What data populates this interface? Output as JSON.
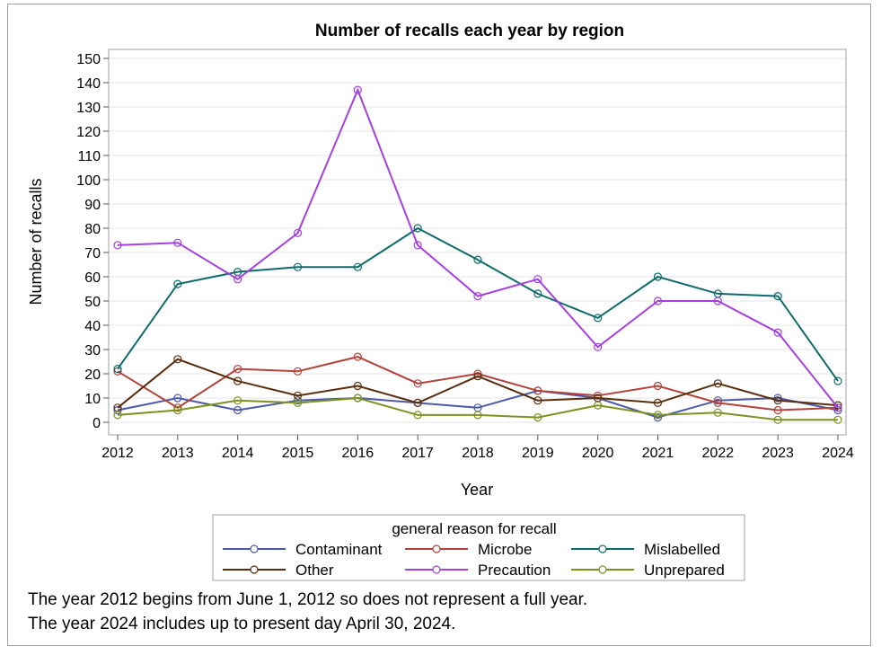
{
  "chart_data": {
    "type": "line",
    "title": "Number of recalls each year by region",
    "xlabel": "Year",
    "ylabel": "Number of recalls",
    "ylim": [
      0,
      150
    ],
    "yticks": [
      0,
      10,
      20,
      30,
      40,
      50,
      60,
      70,
      80,
      90,
      100,
      110,
      120,
      130,
      140,
      150
    ],
    "grid": true,
    "x": [
      2012,
      2013,
      2014,
      2015,
      2016,
      2017,
      2018,
      2019,
      2020,
      2021,
      2022,
      2023,
      2024
    ],
    "legend": {
      "title": "general reason for recall",
      "position": "bottom"
    },
    "series": [
      {
        "name": "Contaminant",
        "color": "#4a5aa8",
        "values": [
          5,
          10,
          5,
          9,
          10,
          8,
          6,
          13,
          10,
          2,
          9,
          10,
          5
        ]
      },
      {
        "name": "Microbe",
        "color": "#b3413a",
        "values": [
          21,
          6,
          22,
          21,
          27,
          16,
          20,
          13,
          11,
          15,
          8,
          5,
          6
        ]
      },
      {
        "name": "Mislabelled",
        "color": "#0f6b6b",
        "values": [
          22,
          57,
          62,
          64,
          64,
          80,
          67,
          53,
          43,
          60,
          53,
          52,
          17
        ]
      },
      {
        "name": "Other",
        "color": "#5a2d0c",
        "values": [
          6,
          26,
          17,
          11,
          15,
          8,
          19,
          9,
          10,
          8,
          16,
          9,
          7
        ]
      },
      {
        "name": "Precaution",
        "color": "#a43fe0",
        "values": [
          73,
          74,
          59,
          78,
          137,
          73,
          52,
          59,
          31,
          50,
          50,
          37,
          6
        ]
      },
      {
        "name": "Unprepared",
        "color": "#7d9121",
        "values": [
          3,
          5,
          9,
          8,
          10,
          3,
          3,
          2,
          7,
          3,
          4,
          1,
          1
        ]
      }
    ]
  },
  "footnotes": [
    "The year 2012 begins from June 1, 2012 so does not represent a full year.",
    "The year 2024 includes up to present day April 30, 2024."
  ]
}
